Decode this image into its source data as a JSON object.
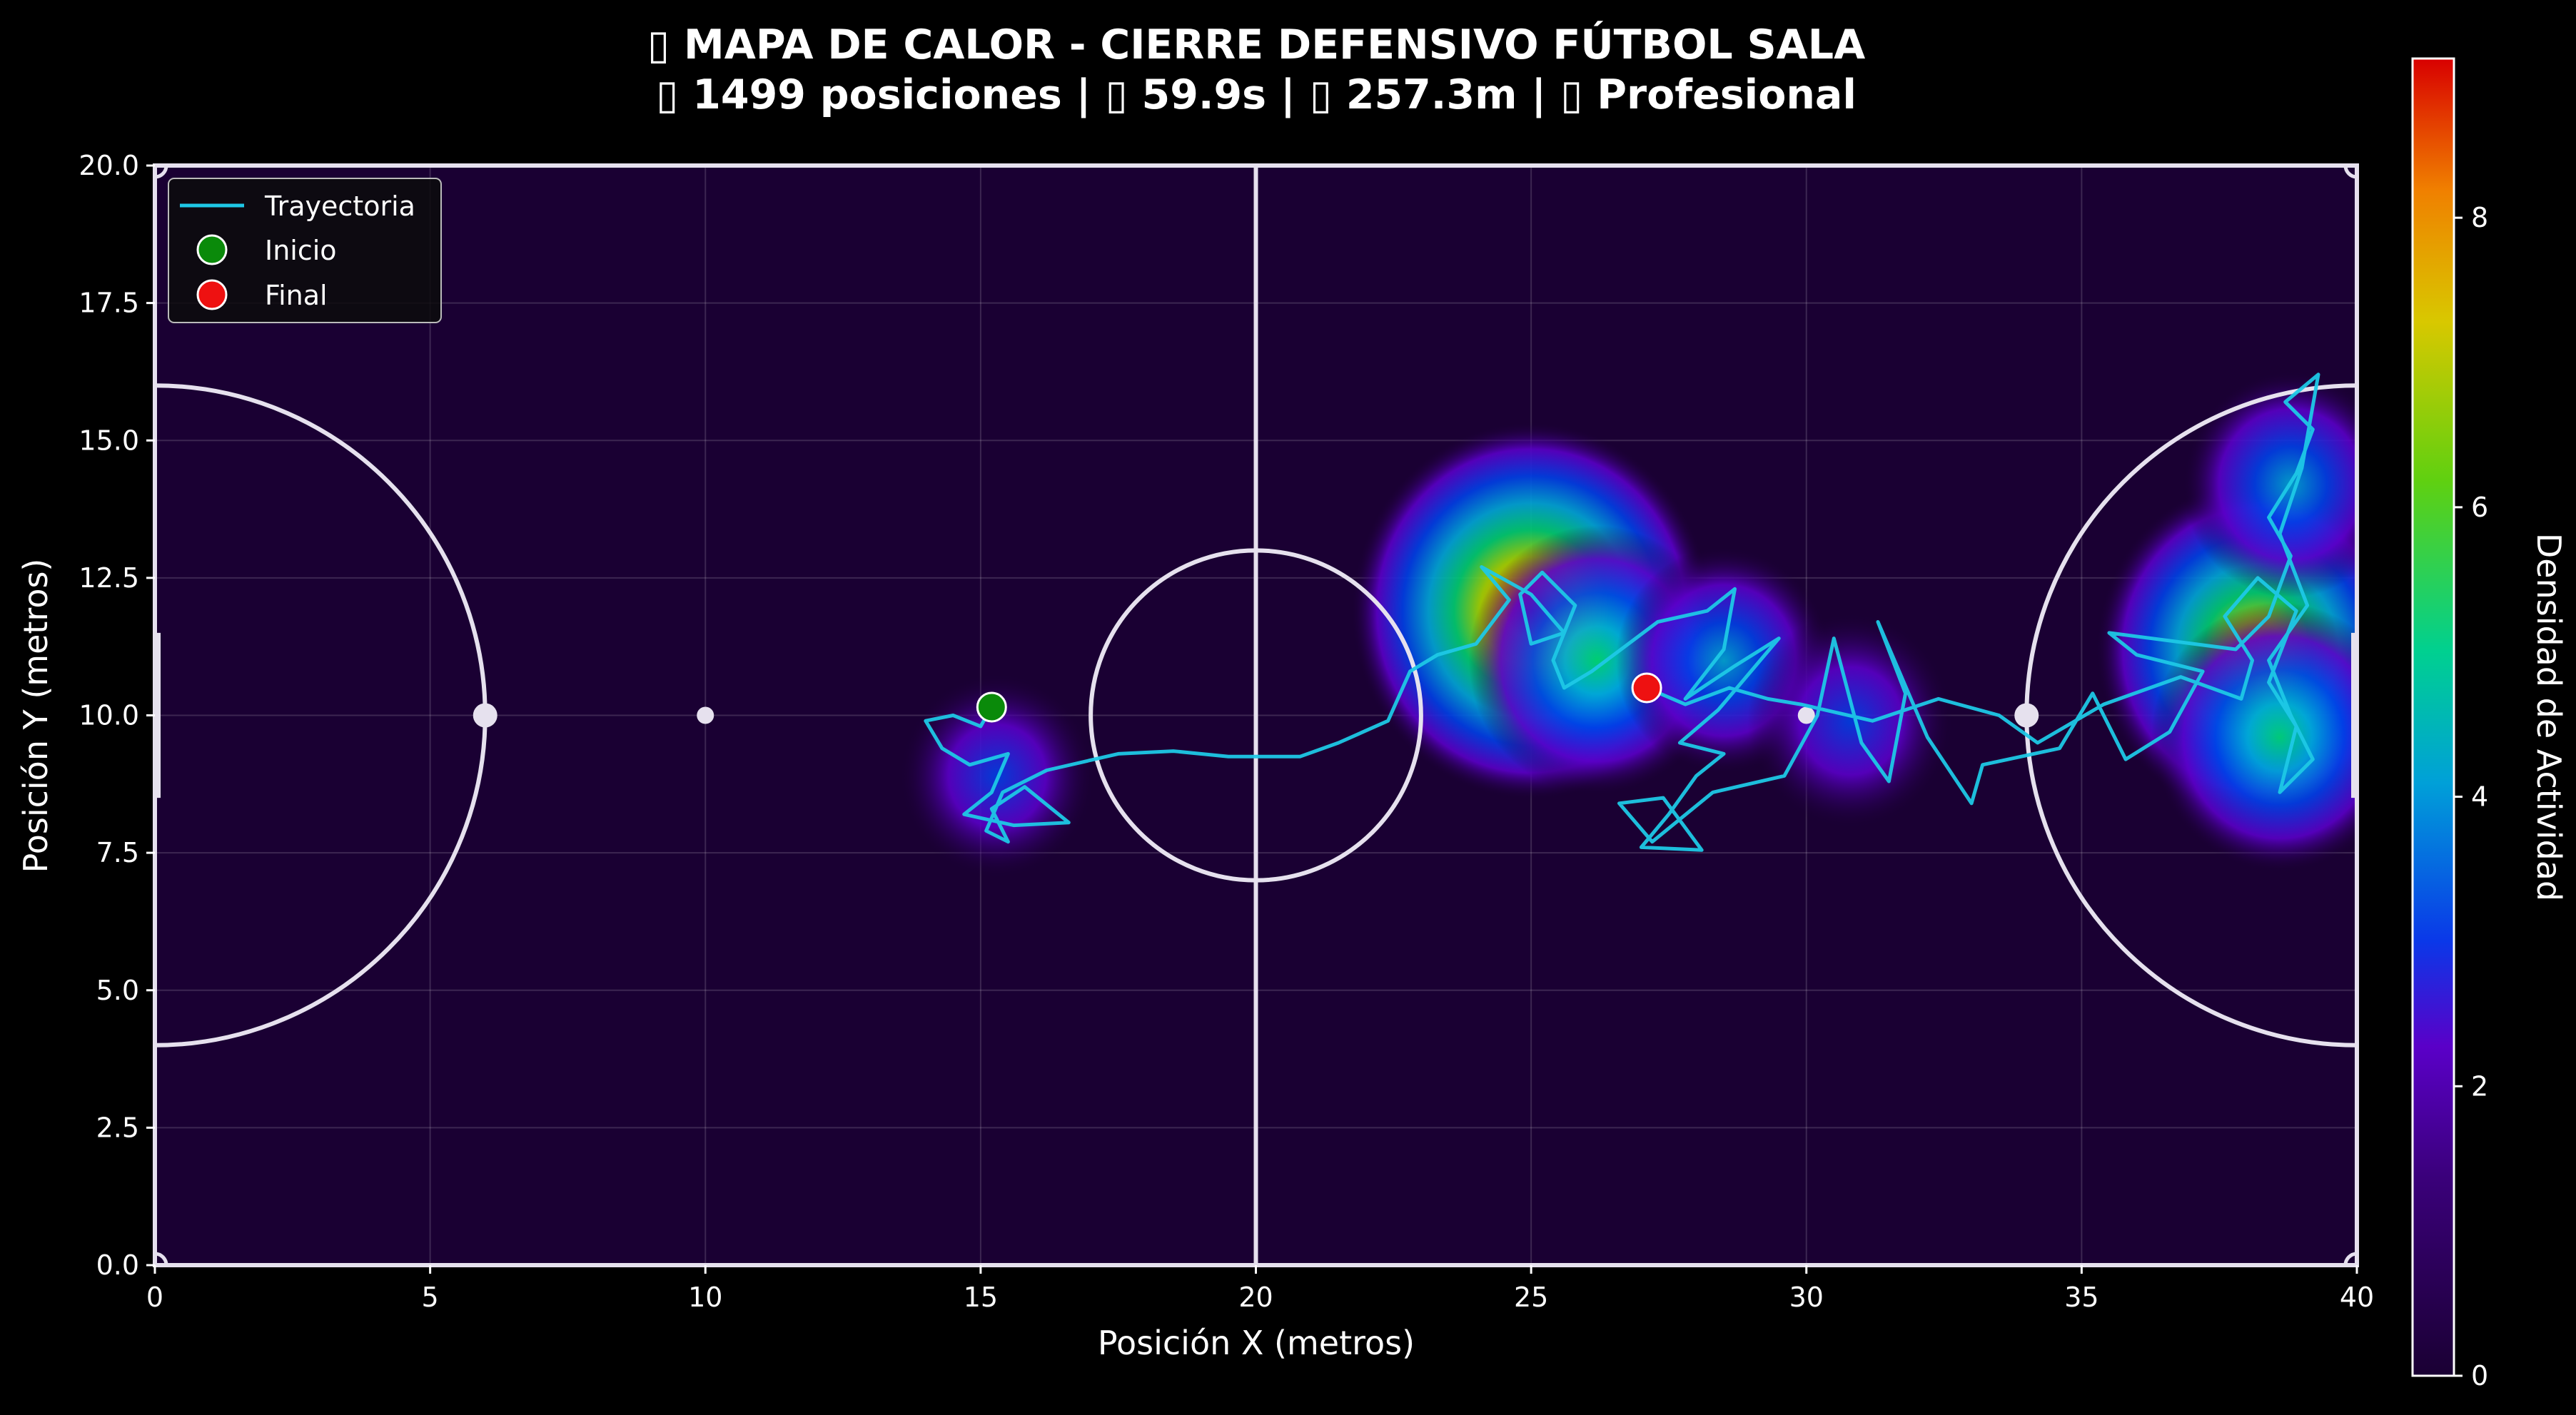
{
  "title": {
    "line1": "▯ MAPA DE CALOR - CIERRE DEFENSIVO FÚTBOL SALA",
    "line2": "▯ 1499 posiciones | ▯ 59.9s | ▯ 257.3m | ▯ Profesional"
  },
  "colors": {
    "background": "#000000",
    "field": "#1a0033",
    "lines": "#e6e1ee",
    "trajectory": "#1ec8e6",
    "start": "#0a8a0a",
    "end": "#ee1111",
    "heat_scale": [
      "#1a0033",
      "#5a00c8",
      "#0040e8",
      "#00a8d8",
      "#00d070",
      "#a8d800",
      "#f0a000",
      "#d80000"
    ]
  },
  "chart_data": {
    "type": "heatmap",
    "xlabel": "Posición X (metros)",
    "ylabel": "Posición Y (metros)",
    "xlim": [
      0,
      40
    ],
    "ylim": [
      0,
      20
    ],
    "xticks": [
      "0",
      "5",
      "10",
      "15",
      "20",
      "25",
      "30",
      "35",
      "40"
    ],
    "yticks": [
      "0.0",
      "2.5",
      "5.0",
      "7.5",
      "10.0",
      "12.5",
      "15.0",
      "17.5",
      "20.0"
    ],
    "grid": true,
    "legend_position": "top-left",
    "legend": [
      {
        "label": "Trayectoria",
        "kind": "line"
      },
      {
        "label": "Inicio",
        "kind": "marker-start"
      },
      {
        "label": "Final",
        "kind": "marker-end"
      }
    ],
    "colorbar": {
      "label": "Densidad de Actividad",
      "range": [
        0,
        9.1
      ],
      "ticks": [
        "0",
        "2",
        "4",
        "6",
        "8"
      ]
    },
    "start_point": {
      "x": 15.2,
      "y": 10.15
    },
    "end_point": {
      "x": 27.1,
      "y": 10.5
    },
    "hotspots": [
      {
        "x": 15.3,
        "y": 8.9,
        "value": 2.6
      },
      {
        "x": 25.0,
        "y": 11.9,
        "value": 9.0
      },
      {
        "x": 26.2,
        "y": 11.0,
        "value": 5.0
      },
      {
        "x": 28.5,
        "y": 11.0,
        "value": 3.4
      },
      {
        "x": 30.8,
        "y": 9.9,
        "value": 3.0
      },
      {
        "x": 38.2,
        "y": 11.2,
        "value": 7.6
      },
      {
        "x": 38.8,
        "y": 14.2,
        "value": 3.4
      },
      {
        "x": 38.6,
        "y": 9.6,
        "value": 5.0
      }
    ],
    "trajectory": [
      [
        15.2,
        10.15
      ],
      [
        15.0,
        9.8
      ],
      [
        14.5,
        10.0
      ],
      [
        14.0,
        9.9
      ],
      [
        14.3,
        9.4
      ],
      [
        14.8,
        9.1
      ],
      [
        15.5,
        9.3
      ],
      [
        15.2,
        8.6
      ],
      [
        14.7,
        8.2
      ],
      [
        15.6,
        8.0
      ],
      [
        16.6,
        8.05
      ],
      [
        15.8,
        8.7
      ],
      [
        15.2,
        8.3
      ],
      [
        15.5,
        7.7
      ],
      [
        15.1,
        7.9
      ],
      [
        15.4,
        8.6
      ],
      [
        16.2,
        9.0
      ],
      [
        17.5,
        9.3
      ],
      [
        18.5,
        9.35
      ],
      [
        19.5,
        9.25
      ],
      [
        20.8,
        9.25
      ],
      [
        21.5,
        9.5
      ],
      [
        22.4,
        9.9
      ],
      [
        22.8,
        10.8
      ],
      [
        23.3,
        11.1
      ],
      [
        24.0,
        11.3
      ],
      [
        24.6,
        12.1
      ],
      [
        24.1,
        12.7
      ],
      [
        25.0,
        12.2
      ],
      [
        25.6,
        11.5
      ],
      [
        25.0,
        11.3
      ],
      [
        24.8,
        12.2
      ],
      [
        25.2,
        12.6
      ],
      [
        25.8,
        12.0
      ],
      [
        25.4,
        11.0
      ],
      [
        25.6,
        10.5
      ],
      [
        26.1,
        10.8
      ],
      [
        27.3,
        11.7
      ],
      [
        28.2,
        11.9
      ],
      [
        28.7,
        12.3
      ],
      [
        28.5,
        11.2
      ],
      [
        27.8,
        10.3
      ],
      [
        28.7,
        10.9
      ],
      [
        29.5,
        11.4
      ],
      [
        28.4,
        10.1
      ],
      [
        27.7,
        9.5
      ],
      [
        28.5,
        9.3
      ],
      [
        28.0,
        8.9
      ],
      [
        27.5,
        8.2
      ],
      [
        27.0,
        7.6
      ],
      [
        28.1,
        7.55
      ],
      [
        27.4,
        8.5
      ],
      [
        26.6,
        8.4
      ],
      [
        27.2,
        7.7
      ],
      [
        28.3,
        8.6
      ],
      [
        29.6,
        8.9
      ],
      [
        30.2,
        10.0
      ],
      [
        30.5,
        11.4
      ],
      [
        31.0,
        9.5
      ],
      [
        31.5,
        8.8
      ],
      [
        31.8,
        10.4
      ],
      [
        31.3,
        11.7
      ],
      [
        32.2,
        9.6
      ],
      [
        33.0,
        8.4
      ],
      [
        33.2,
        9.1
      ],
      [
        34.6,
        9.4
      ],
      [
        35.2,
        10.4
      ],
      [
        35.8,
        9.2
      ],
      [
        36.6,
        9.7
      ],
      [
        37.2,
        10.8
      ],
      [
        36.0,
        11.1
      ],
      [
        35.5,
        11.5
      ],
      [
        37.8,
        11.2
      ],
      [
        38.4,
        11.8
      ],
      [
        38.8,
        12.9
      ],
      [
        38.4,
        13.6
      ],
      [
        38.9,
        14.4
      ],
      [
        39.2,
        15.2
      ],
      [
        38.7,
        15.7
      ],
      [
        39.3,
        16.2
      ],
      [
        39.0,
        14.5
      ],
      [
        38.6,
        13.3
      ],
      [
        39.1,
        12.0
      ],
      [
        38.4,
        11.0
      ],
      [
        38.8,
        10.0
      ],
      [
        39.2,
        9.2
      ],
      [
        38.6,
        8.6
      ],
      [
        38.9,
        9.8
      ],
      [
        38.4,
        10.6
      ],
      [
        38.9,
        11.9
      ],
      [
        38.2,
        12.5
      ],
      [
        37.6,
        11.8
      ],
      [
        38.1,
        11.0
      ],
      [
        37.9,
        10.3
      ],
      [
        36.8,
        10.7
      ],
      [
        35.4,
        10.2
      ],
      [
        34.2,
        9.5
      ],
      [
        33.5,
        10.0
      ],
      [
        32.4,
        10.3
      ],
      [
        31.2,
        9.9
      ],
      [
        29.9,
        10.2
      ],
      [
        29.3,
        10.3
      ],
      [
        28.6,
        10.5
      ],
      [
        27.8,
        10.2
      ],
      [
        27.1,
        10.5
      ]
    ]
  }
}
